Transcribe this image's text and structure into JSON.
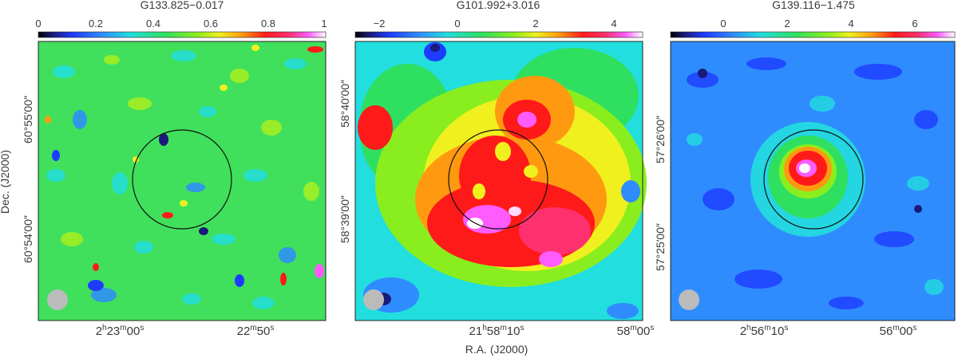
{
  "figure": {
    "xlabel": "R.A. (J2000)",
    "ylabel": "Dec. (J2000)"
  },
  "panels": [
    {
      "title": "G133.825−0.017",
      "colorbar_ticks": [
        "0",
        "0.2",
        "0.4",
        "0.6",
        "0.8",
        "1"
      ],
      "colorbar_range": [
        0,
        1
      ],
      "ra_ticks": [
        {
          "h": "2",
          "m": "23",
          "s": "00"
        },
        {
          "m": "22",
          "s": "50"
        }
      ],
      "dec_ticks": [
        {
          "d": "60",
          "m": "55",
          "s": "00"
        },
        {
          "d": "60",
          "m": "54",
          "s": "00"
        }
      ],
      "emission": "noise"
    },
    {
      "title": "G101.992+3.016",
      "colorbar_ticks": [
        "−2",
        "0",
        "2",
        "4"
      ],
      "colorbar_range": [
        -2.6,
        4.8
      ],
      "ra_ticks": [
        {
          "h": "21",
          "m": "58",
          "s": "10"
        },
        {
          "m": "58",
          "s": "00"
        }
      ],
      "dec_ticks": [
        {
          "d": "58",
          "m": "40",
          "s": "00"
        },
        {
          "d": "58",
          "m": "39",
          "s": "00"
        }
      ],
      "emission": "extended"
    },
    {
      "title": "G139.116−1.475",
      "colorbar_ticks": [
        "0",
        "2",
        "4",
        "6"
      ],
      "colorbar_range": [
        -1.2,
        7.4
      ],
      "ra_ticks": [
        {
          "h": "2",
          "m": "56",
          "s": "10"
        },
        {
          "m": "56",
          "s": "00"
        }
      ],
      "dec_ticks": [
        {
          "d": "57",
          "m": "26",
          "s": "00"
        },
        {
          "d": "57",
          "m": "25",
          "s": "00"
        }
      ],
      "emission": "compact"
    }
  ]
}
